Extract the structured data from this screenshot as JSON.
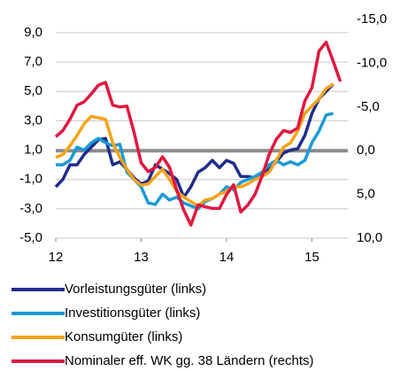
{
  "chart_data": {
    "type": "line",
    "x": [
      12.0,
      12.083,
      12.167,
      12.25,
      12.333,
      12.417,
      12.5,
      12.583,
      12.667,
      12.75,
      12.833,
      12.917,
      13.0,
      13.083,
      13.167,
      13.25,
      13.333,
      13.417,
      13.5,
      13.583,
      13.667,
      13.75,
      13.833,
      13.917,
      14.0,
      14.083,
      14.167,
      14.25,
      14.333,
      14.417,
      14.5,
      14.583,
      14.667,
      14.75,
      14.833,
      14.917,
      15.0,
      15.083,
      15.167,
      15.25,
      15.333
    ],
    "xlim": [
      12,
      15.42
    ],
    "xticks": [
      12,
      13,
      14,
      15
    ],
    "ylim": [
      -5,
      9.9
    ],
    "yticks": [
      {
        "value": 9,
        "label": "9,0"
      },
      {
        "value": 7,
        "label": "7,0"
      },
      {
        "value": 5,
        "label": "5,0"
      },
      {
        "value": 3,
        "label": "3,0"
      },
      {
        "value": 1,
        "label": "1,0"
      },
      {
        "value": -1,
        "label": "-1,0"
      },
      {
        "value": -3,
        "label": "-3,0"
      },
      {
        "value": -5,
        "label": "-5,0"
      }
    ],
    "y2lim": [
      -15,
      10
    ],
    "y2_inverted": true,
    "y2ticks": [
      {
        "value": -15,
        "label": "-15,0"
      },
      {
        "value": -10,
        "label": "-10,0"
      },
      {
        "value": -5,
        "label": "-5,0"
      },
      {
        "value": 0,
        "label": "0,0"
      },
      {
        "value": 5,
        "label": "5,0"
      },
      {
        "value": 10,
        "label": "10,0"
      }
    ],
    "grid": true,
    "y2_zero_line": true,
    "legend": "bottom",
    "series": [
      {
        "name": "Vorleistungsgüter (links)",
        "color": "#1f2e8a",
        "values": [
          -1.5,
          -1.0,
          0.0,
          0.0,
          0.7,
          1.2,
          1.7,
          1.8,
          0.0,
          0.2,
          -0.3,
          -0.9,
          -1.3,
          -1.1,
          0.0,
          -0.3,
          -0.6,
          -1.0,
          -2.2,
          -1.5,
          -0.5,
          -0.2,
          0.3,
          -0.2,
          0.3,
          0.1,
          -0.8,
          -0.8,
          -0.9,
          -0.6,
          -0.3,
          0.2,
          0.8,
          1.0,
          1.1,
          2.0,
          3.5,
          4.5,
          5.0,
          5.5,
          null
        ]
      },
      {
        "name": "Investitionsgüter (links)",
        "color": "#1a9ad6",
        "values": [
          0.0,
          0.0,
          0.3,
          1.2,
          1.0,
          1.5,
          1.8,
          1.5,
          1.3,
          1.4,
          -0.5,
          -1.0,
          -1.5,
          -2.6,
          -2.7,
          -2.0,
          -2.4,
          -2.2,
          -2.6,
          -2.8,
          -3.0,
          -2.5,
          -2.3,
          -2.0,
          -1.5,
          -1.7,
          -1.2,
          -1.0,
          -0.8,
          -0.5,
          0.0,
          0.3,
          0.0,
          0.2,
          0.0,
          0.3,
          1.5,
          2.3,
          3.4,
          3.5,
          null
        ]
      },
      {
        "name": "Konsumgüter (links)",
        "color": "#f5a31a",
        "values": [
          0.5,
          0.7,
          1.3,
          2.0,
          2.8,
          3.3,
          3.2,
          3.1,
          1.5,
          0.5,
          -0.3,
          -1.0,
          -1.4,
          -1.3,
          -0.8,
          -0.3,
          -1.0,
          -1.8,
          -2.2,
          -2.5,
          -2.8,
          -2.4,
          -2.3,
          -2.0,
          -1.8,
          -1.5,
          -1.5,
          -1.3,
          -1.0,
          -0.8,
          -0.5,
          0.3,
          1.2,
          1.5,
          2.3,
          3.5,
          4.0,
          4.5,
          5.2,
          5.5,
          null
        ]
      },
      {
        "name": "Nominaler eff. WK gg. 38 Ländern (rechts)",
        "color": "#e0173f",
        "axis": "y2",
        "values": [
          -1.6,
          -2.3,
          -3.6,
          -5.2,
          -5.6,
          -6.5,
          -7.5,
          -7.8,
          -5.2,
          -5.0,
          -5.1,
          -2.1,
          1.4,
          2.4,
          1.9,
          0.7,
          1.9,
          4.5,
          6.8,
          8.5,
          6.2,
          6.4,
          6.6,
          6.6,
          5.0,
          3.9,
          7.0,
          6.2,
          5.0,
          2.9,
          0.4,
          -1.3,
          -2.3,
          -2.1,
          -2.6,
          -5.7,
          -7.2,
          -11.4,
          -12.4,
          -10.2,
          -7.9
        ]
      }
    ]
  }
}
